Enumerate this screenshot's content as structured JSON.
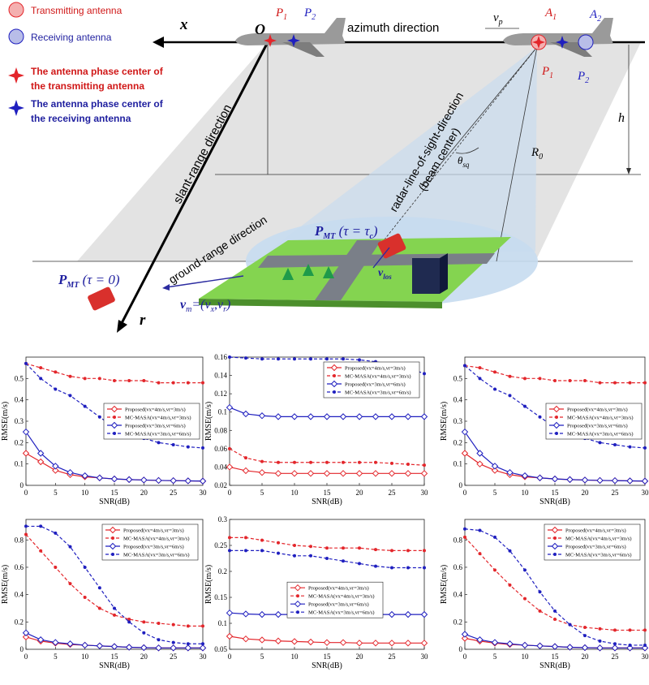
{
  "diagram": {
    "legend": [
      "Transmitting antenna",
      "Receiving antenna",
      [
        "The antenna phase center of",
        "the transmitting antenna"
      ],
      [
        "The antenna phase center of",
        "the receiving antenna"
      ]
    ],
    "x_axis": "x",
    "origin": "O",
    "azimuth": "azimuth direction",
    "r_axis": "r",
    "p1_left": {
      "base": "P",
      "sub": "1"
    },
    "p2_left": {
      "base": "P",
      "sub": "2"
    },
    "p1_right": {
      "base": "P",
      "sub": "1"
    },
    "p2_right": {
      "base": "P",
      "sub": "2"
    },
    "a1": {
      "base": "A",
      "sub": "1"
    },
    "a2": {
      "base": "A",
      "sub": "2"
    },
    "vp": {
      "base": "v",
      "sub": "p"
    },
    "r0": {
      "base": "R",
      "sub": "0"
    },
    "h": "h",
    "theta": {
      "base": "θ",
      "sub": "sq"
    },
    "slant": "slant-range direction",
    "ground": "ground-range direction",
    "los": [
      "radar-line-of-sight-direction",
      "(beam center)"
    ],
    "pmt_c": {
      "base": "P",
      "sub": "MT",
      "rest": " (τ = τ",
      "sub2": "c",
      "end": ")"
    },
    "pmt_0": {
      "base": "P",
      "sub": "MT",
      "rest": " (τ = 0)"
    },
    "vm": {
      "base": "v",
      "sub": "m",
      "rest": "=(v",
      "sub_x": "x",
      "mid": ",v",
      "sub_r": "r",
      "end": ")"
    },
    "vlos": {
      "base": "v",
      "sub": "los"
    }
  },
  "chart_data": [
    {
      "type": "line",
      "xlabel": "SNR(dB)",
      "ylabel": "RMSE(m/s)",
      "x": [
        0,
        2.5,
        5,
        7.5,
        10,
        12.5,
        15,
        17.5,
        20,
        22.5,
        25,
        27.5,
        30
      ],
      "xlim": [
        0,
        30
      ],
      "xticks": [
        0,
        5,
        10,
        15,
        20,
        25,
        30
      ],
      "ylim": [
        0,
        0.6
      ],
      "yticks": [
        0,
        0.1,
        0.2,
        0.3,
        0.4,
        0.5
      ],
      "grid": false,
      "legend": "center right",
      "series": [
        {
          "name": "Proposed(vx=4m/s,vr=3m/s)",
          "color": "#e3262b",
          "line_style": "solid",
          "marker": "diamond",
          "values": [
            0.15,
            0.11,
            0.07,
            0.05,
            0.04,
            0.035,
            0.03,
            0.027,
            0.025,
            0.023,
            0.022,
            0.021,
            0.02
          ]
        },
        {
          "name": "MC-MASA(vx=4m/s,vr=3m/s)",
          "color": "#e3262b",
          "line_style": "dashed",
          "marker": "circle",
          "values": [
            0.57,
            0.55,
            0.53,
            0.51,
            0.5,
            0.5,
            0.49,
            0.49,
            0.49,
            0.48,
            0.48,
            0.48,
            0.48
          ]
        },
        {
          "name": "Proposed(vx=3m/s,vr=6m/s)",
          "color": "#1f1fbf",
          "line_style": "solid",
          "marker": "diamond",
          "values": [
            0.25,
            0.15,
            0.09,
            0.06,
            0.045,
            0.035,
            0.03,
            0.027,
            0.025,
            0.023,
            0.022,
            0.021,
            0.02
          ]
        },
        {
          "name": "MC-MASA(vx=3m/s,vr=6m/s)",
          "color": "#1f1fbf",
          "line_style": "dashed",
          "marker": "circle",
          "values": [
            0.57,
            0.5,
            0.45,
            0.42,
            0.37,
            0.32,
            0.27,
            0.24,
            0.22,
            0.2,
            0.19,
            0.18,
            0.175
          ]
        }
      ]
    },
    {
      "type": "line",
      "xlabel": "SNR(dB)",
      "ylabel": "RMSE(m/s)",
      "x": [
        0,
        2.5,
        5,
        7.5,
        10,
        12.5,
        15,
        17.5,
        20,
        22.5,
        25,
        27.5,
        30
      ],
      "xlim": [
        0,
        30
      ],
      "xticks": [
        0,
        5,
        10,
        15,
        20,
        25,
        30
      ],
      "ylim": [
        0.02,
        0.16
      ],
      "yticks": [
        0.02,
        0.04,
        0.06,
        0.08,
        0.1,
        0.12,
        0.14,
        0.16
      ],
      "grid": false,
      "legend": "upper right",
      "series": [
        {
          "name": "Proposed(vx=4m/s,vr=3m/s)",
          "color": "#e3262b",
          "line_style": "solid",
          "marker": "diamond",
          "values": [
            0.04,
            0.036,
            0.034,
            0.033,
            0.033,
            0.033,
            0.033,
            0.033,
            0.033,
            0.033,
            0.033,
            0.033,
            0.033
          ]
        },
        {
          "name": "MC-MASA(vx=4m/s,vr=3m/s)",
          "color": "#e3262b",
          "line_style": "dashed",
          "marker": "circle",
          "values": [
            0.06,
            0.05,
            0.046,
            0.045,
            0.045,
            0.045,
            0.045,
            0.045,
            0.045,
            0.045,
            0.044,
            0.043,
            0.042
          ]
        },
        {
          "name": "Proposed(vx=3m/s,vr=6m/s)",
          "color": "#1f1fbf",
          "line_style": "solid",
          "marker": "diamond",
          "values": [
            0.105,
            0.098,
            0.096,
            0.095,
            0.095,
            0.095,
            0.095,
            0.095,
            0.095,
            0.095,
            0.095,
            0.095,
            0.095
          ]
        },
        {
          "name": "MC-MASA(vx=3m/s,vr=6m/s)",
          "color": "#1f1fbf",
          "line_style": "dashed",
          "marker": "circle",
          "values": [
            0.16,
            0.159,
            0.158,
            0.158,
            0.158,
            0.158,
            0.158,
            0.158,
            0.157,
            0.155,
            0.152,
            0.148,
            0.142
          ]
        }
      ]
    },
    {
      "type": "line",
      "xlabel": "SNR(dB)",
      "ylabel": "RMSE(m/s)",
      "x": [
        0,
        2.5,
        5,
        7.5,
        10,
        12.5,
        15,
        17.5,
        20,
        22.5,
        25,
        27.5,
        30
      ],
      "xlim": [
        0,
        30
      ],
      "xticks": [
        0,
        5,
        10,
        15,
        20,
        25,
        30
      ],
      "ylim": [
        0,
        0.6
      ],
      "yticks": [
        0,
        0.1,
        0.2,
        0.3,
        0.4,
        0.5
      ],
      "grid": false,
      "legend": "center right",
      "series": [
        {
          "name": "Proposed(vx=4m/s,vr=3m/s)",
          "color": "#e3262b",
          "line_style": "solid",
          "marker": "diamond",
          "values": [
            0.15,
            0.1,
            0.07,
            0.05,
            0.04,
            0.035,
            0.03,
            0.027,
            0.025,
            0.023,
            0.022,
            0.021,
            0.02
          ]
        },
        {
          "name": "MC-MASA(vx=4m/s,vr=3m/s)",
          "color": "#e3262b",
          "line_style": "dashed",
          "marker": "circle",
          "values": [
            0.56,
            0.55,
            0.53,
            0.51,
            0.5,
            0.5,
            0.49,
            0.49,
            0.49,
            0.48,
            0.48,
            0.48,
            0.48
          ]
        },
        {
          "name": "Proposed(vx=3m/s,vr=6m/s)",
          "color": "#1f1fbf",
          "line_style": "solid",
          "marker": "diamond",
          "values": [
            0.25,
            0.15,
            0.09,
            0.06,
            0.045,
            0.035,
            0.03,
            0.027,
            0.025,
            0.023,
            0.022,
            0.021,
            0.02
          ]
        },
        {
          "name": "MC-MASA(vx=3m/s,vr=6m/s)",
          "color": "#1f1fbf",
          "line_style": "dashed",
          "marker": "circle",
          "values": [
            0.56,
            0.5,
            0.45,
            0.42,
            0.37,
            0.32,
            0.27,
            0.24,
            0.22,
            0.2,
            0.19,
            0.18,
            0.175
          ]
        }
      ]
    },
    {
      "type": "line",
      "xlabel": "SNR(dB)",
      "ylabel": "RMSE(m/s)",
      "x": [
        0,
        2.5,
        5,
        7.5,
        10,
        12.5,
        15,
        17.5,
        20,
        22.5,
        25,
        27.5,
        30
      ],
      "xlim": [
        0,
        30
      ],
      "xticks": [
        0,
        5,
        10,
        15,
        20,
        25,
        30
      ],
      "ylim": [
        0,
        0.95
      ],
      "yticks": [
        0,
        0.2,
        0.4,
        0.6,
        0.8
      ],
      "grid": false,
      "legend": "upper right",
      "series": [
        {
          "name": "Proposed(vx=4m/s,vr=3m/s)",
          "color": "#e3262b",
          "line_style": "solid",
          "marker": "diamond",
          "values": [
            0.09,
            0.06,
            0.045,
            0.035,
            0.03,
            0.025,
            0.02,
            0.015,
            0.012,
            0.01,
            0.01,
            0.01,
            0.01
          ]
        },
        {
          "name": "MC-MASA(vx=4m/s,vr=3m/s)",
          "color": "#e3262b",
          "line_style": "dashed",
          "marker": "circle",
          "values": [
            0.84,
            0.72,
            0.6,
            0.48,
            0.38,
            0.3,
            0.25,
            0.22,
            0.2,
            0.19,
            0.18,
            0.17,
            0.17
          ]
        },
        {
          "name": "Proposed(vx=3m/s,vr=6m/s)",
          "color": "#1f1fbf",
          "line_style": "solid",
          "marker": "diamond",
          "values": [
            0.12,
            0.07,
            0.05,
            0.04,
            0.03,
            0.025,
            0.02,
            0.015,
            0.012,
            0.01,
            0.01,
            0.01,
            0.01
          ]
        },
        {
          "name": "MC-MASA(vx=3m/s,vr=6m/s)",
          "color": "#1f1fbf",
          "line_style": "dashed",
          "marker": "circle",
          "values": [
            0.9,
            0.9,
            0.85,
            0.75,
            0.6,
            0.45,
            0.3,
            0.2,
            0.12,
            0.07,
            0.05,
            0.04,
            0.04
          ]
        }
      ]
    },
    {
      "type": "line",
      "xlabel": "SNR(dB)",
      "ylabel": "RMSE(m/s)",
      "x": [
        0,
        2.5,
        5,
        7.5,
        10,
        12.5,
        15,
        17.5,
        20,
        22.5,
        25,
        27.5,
        30
      ],
      "xlim": [
        0,
        30
      ],
      "xticks": [
        0,
        5,
        10,
        15,
        20,
        25,
        30
      ],
      "ylim": [
        0.05,
        0.3
      ],
      "yticks": [
        0.05,
        0.1,
        0.15,
        0.2,
        0.25,
        0.3
      ],
      "grid": false,
      "legend": "center",
      "series": [
        {
          "name": "Proposed(vx=4m/s,vr=3m/s)",
          "color": "#e3262b",
          "line_style": "solid",
          "marker": "diamond",
          "values": [
            0.075,
            0.07,
            0.068,
            0.066,
            0.065,
            0.064,
            0.063,
            0.063,
            0.062,
            0.062,
            0.062,
            0.062,
            0.062
          ]
        },
        {
          "name": "MC-MASA(vx=4m/s,vr=3m/s)",
          "color": "#e3262b",
          "line_style": "dashed",
          "marker": "circle",
          "values": [
            0.265,
            0.265,
            0.26,
            0.255,
            0.25,
            0.248,
            0.245,
            0.245,
            0.245,
            0.242,
            0.24,
            0.24,
            0.24
          ]
        },
        {
          "name": "Proposed(vx=3m/s,vr=6m/s)",
          "color": "#1f1fbf",
          "line_style": "solid",
          "marker": "diamond",
          "values": [
            0.12,
            0.118,
            0.117,
            0.117,
            0.117,
            0.117,
            0.117,
            0.117,
            0.117,
            0.117,
            0.117,
            0.117,
            0.117
          ]
        },
        {
          "name": "MC-MASA(vx=3m/s,vr=6m/s)",
          "color": "#1f1fbf",
          "line_style": "dashed",
          "marker": "circle",
          "values": [
            0.24,
            0.24,
            0.24,
            0.235,
            0.23,
            0.23,
            0.225,
            0.22,
            0.215,
            0.21,
            0.207,
            0.207,
            0.207
          ]
        }
      ]
    },
    {
      "type": "line",
      "xlabel": "SNR(dB)",
      "ylabel": "RMSE(m/s)",
      "x": [
        0,
        2.5,
        5,
        7.5,
        10,
        12.5,
        15,
        17.5,
        20,
        22.5,
        25,
        27.5,
        30
      ],
      "xlim": [
        0,
        30
      ],
      "xticks": [
        0,
        5,
        10,
        15,
        20,
        25,
        30
      ],
      "ylim": [
        0,
        0.95
      ],
      "yticks": [
        0,
        0.2,
        0.4,
        0.6,
        0.8
      ],
      "grid": false,
      "legend": "upper right",
      "series": [
        {
          "name": "Proposed(vx=4m/s,vr=3m/s)",
          "color": "#e3262b",
          "line_style": "solid",
          "marker": "diamond",
          "values": [
            0.08,
            0.06,
            0.045,
            0.035,
            0.03,
            0.025,
            0.02,
            0.015,
            0.012,
            0.01,
            0.01,
            0.01,
            0.01
          ]
        },
        {
          "name": "MC-MASA(vx=4m/s,vr=3m/s)",
          "color": "#e3262b",
          "line_style": "dashed",
          "marker": "circle",
          "values": [
            0.82,
            0.7,
            0.58,
            0.47,
            0.37,
            0.28,
            0.22,
            0.18,
            0.16,
            0.15,
            0.14,
            0.14,
            0.14
          ]
        },
        {
          "name": "Proposed(vx=3m/s,vr=6m/s)",
          "color": "#1f1fbf",
          "line_style": "solid",
          "marker": "diamond",
          "values": [
            0.11,
            0.07,
            0.05,
            0.04,
            0.03,
            0.025,
            0.02,
            0.015,
            0.012,
            0.01,
            0.01,
            0.01,
            0.01
          ]
        },
        {
          "name": "MC-MASA(vx=3m/s,vr=6m/s)",
          "color": "#1f1fbf",
          "line_style": "dashed",
          "marker": "circle",
          "values": [
            0.88,
            0.87,
            0.82,
            0.72,
            0.58,
            0.42,
            0.28,
            0.18,
            0.1,
            0.06,
            0.04,
            0.03,
            0.03
          ]
        }
      ]
    }
  ]
}
